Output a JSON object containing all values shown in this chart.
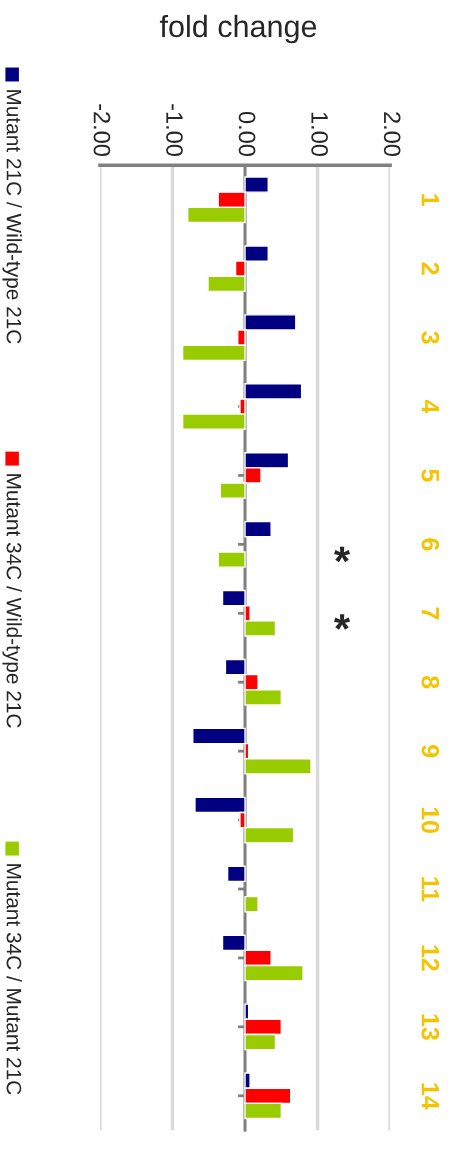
{
  "chart_data": {
    "type": "bar",
    "orientation": "horizontal",
    "title": "fold change",
    "categories": [
      "1",
      "2",
      "3",
      "4",
      "5",
      "6",
      "7",
      "8",
      "9",
      "10",
      "11",
      "12",
      "13",
      "14"
    ],
    "series": [
      {
        "name": "Mutant 21C / Wild-type 21C",
        "color": "#000080",
        "values": [
          0.32,
          0.32,
          0.7,
          0.78,
          0.6,
          0.36,
          -0.31,
          -0.27,
          -0.72,
          -0.69,
          -0.24,
          -0.31,
          0.05,
          0.07
        ]
      },
      {
        "name": "Mutant 34C / Wild-type 21C",
        "color": "#ff0000",
        "values": [
          -0.37,
          -0.13,
          -0.1,
          -0.07,
          0.22,
          null,
          0.07,
          0.18,
          0.05,
          -0.07,
          null,
          0.36,
          0.5,
          0.63
        ]
      },
      {
        "name": "Mutant 34C / Mutant 21C",
        "color": "#99cc00",
        "values": [
          -0.79,
          -0.51,
          -0.86,
          -0.86,
          -0.34,
          -0.37,
          0.42,
          0.5,
          0.91,
          0.67,
          0.18,
          0.8,
          0.42,
          0.5
        ]
      }
    ],
    "xlim": [
      -2,
      2
    ],
    "xticks": [
      {
        "value": -2,
        "label": "-2.00"
      },
      {
        "value": -1,
        "label": "-1.00"
      },
      {
        "value": 0,
        "label": "0.00"
      },
      {
        "value": 1,
        "label": "1.00"
      },
      {
        "value": 2,
        "label": "2.00"
      }
    ],
    "grid": "x",
    "legend": "left",
    "annotations": [
      "*",
      "*"
    ]
  }
}
